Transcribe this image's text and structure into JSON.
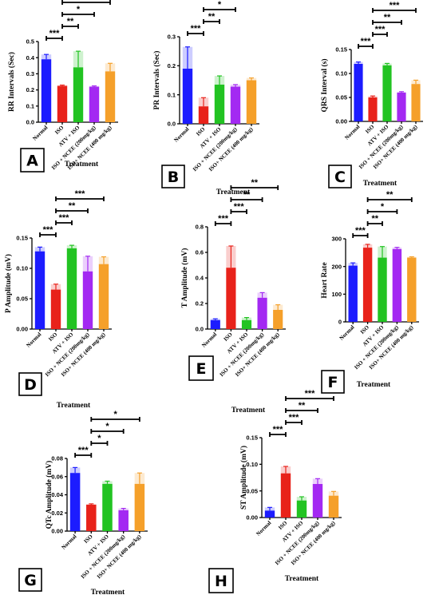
{
  "chart_data": [
    {
      "panel": "A",
      "type": "bar",
      "ylabel": "RR Intervals (Sec)",
      "xlabel": "Treatment",
      "ylim": [
        0,
        0.5
      ],
      "yticks": [
        "0.0",
        "0.1",
        "0.2",
        "0.3",
        "0.4",
        "0.5"
      ],
      "categories": [
        "Normal",
        "ISO",
        "ATV + ISO",
        "ISO + NCEE (200mg/kg)",
        "ISO+ NCEE (400 mg/kg)"
      ],
      "values": [
        0.39,
        0.225,
        0.34,
        0.22,
        0.315
      ],
      "errors": [
        0.03,
        0.005,
        0.1,
        0.005,
        0.05
      ],
      "colors": [
        "#1c1cff",
        "#e8221a",
        "#22c322",
        "#a329f2",
        "#f5a02a"
      ],
      "significance": [
        {
          "from": 0,
          "to": 1,
          "label": "***"
        },
        {
          "from": 1,
          "to": 2,
          "label": "**"
        },
        {
          "from": 1,
          "to": 3,
          "label": "*"
        },
        {
          "from": 1,
          "to": 4,
          "label": "**"
        }
      ]
    },
    {
      "panel": "B",
      "type": "bar",
      "ylabel": "PR Intervals (Sec)",
      "xlabel": "Treatment",
      "ylim": [
        0,
        0.3
      ],
      "yticks": [
        "0.0",
        "0.1",
        "0.2",
        "0.3"
      ],
      "categories": [
        "Normal",
        "ISO",
        "ATV + ISO",
        "ISO + NCEE (200mg/kg)",
        "ISO+ NCEE (400 mg/kg)"
      ],
      "values": [
        0.19,
        0.06,
        0.135,
        0.128,
        0.15
      ],
      "errors": [
        0.075,
        0.03,
        0.03,
        0.007,
        0.008
      ],
      "colors": [
        "#1c1cff",
        "#e8221a",
        "#22c322",
        "#a329f2",
        "#f5a02a"
      ],
      "significance": [
        {
          "from": 0,
          "to": 1,
          "label": "***"
        },
        {
          "from": 1,
          "to": 2,
          "label": "**"
        },
        {
          "from": 1,
          "to": 3,
          "label": "*"
        },
        {
          "from": 1,
          "to": 4,
          "label": "**"
        }
      ]
    },
    {
      "panel": "C",
      "type": "bar",
      "ylabel": "QRS Interval (s)",
      "xlabel": "Treatment",
      "ylim": [
        0,
        0.15
      ],
      "yticks": [
        "0.00",
        "0.05",
        "0.10",
        "0.15"
      ],
      "categories": [
        "Normal",
        "ISO",
        "ATV + ISO",
        "ISO + NCEE (200mg/kg)",
        "ISO+ NCEE (400 mg/kg)"
      ],
      "values": [
        0.12,
        0.05,
        0.117,
        0.06,
        0.078
      ],
      "errors": [
        0.004,
        0.003,
        0.004,
        0.002,
        0.008
      ],
      "colors": [
        "#1c1cff",
        "#e8221a",
        "#22c322",
        "#a329f2",
        "#f5a02a"
      ],
      "significance": [
        {
          "from": 0,
          "to": 1,
          "label": "***"
        },
        {
          "from": 1,
          "to": 2,
          "label": "***"
        },
        {
          "from": 1,
          "to": 3,
          "label": "**"
        },
        {
          "from": 1,
          "to": 4,
          "label": "***"
        }
      ]
    },
    {
      "panel": "D",
      "type": "bar",
      "ylabel": "P Amplitude (mV)",
      "xlabel": "Treatment",
      "ylim": [
        0,
        0.15
      ],
      "yticks": [
        "0.00",
        "0.05",
        "0.10",
        "0.15"
      ],
      "categories": [
        "Normal",
        "ISO",
        "ATV + ISO",
        "ISO + NCEE (200mg/kg)",
        "ISO+ NCEE (400 mg/kg)"
      ],
      "values": [
        0.128,
        0.065,
        0.133,
        0.095,
        0.107
      ],
      "errors": [
        0.007,
        0.009,
        0.005,
        0.025,
        0.012
      ],
      "colors": [
        "#1c1cff",
        "#e8221a",
        "#22c322",
        "#a329f2",
        "#f5a02a"
      ],
      "significance": [
        {
          "from": 0,
          "to": 1,
          "label": "***"
        },
        {
          "from": 1,
          "to": 2,
          "label": "***"
        },
        {
          "from": 1,
          "to": 3,
          "label": "**"
        },
        {
          "from": 1,
          "to": 4,
          "label": "***"
        }
      ]
    },
    {
      "panel": "E",
      "type": "bar",
      "ylabel": "T Amplitude (mV)",
      "xlabel": "Treatment",
      "ylim": [
        0,
        0.8
      ],
      "yticks": [
        "0.0",
        "0.2",
        "0.4",
        "0.6",
        "0.8"
      ],
      "categories": [
        "Normal",
        "ISO",
        "ATV + ISO",
        "ISO + NCEE (200mg/kg)",
        "ISO+ NCEE (400 mg/kg)"
      ],
      "values": [
        0.07,
        0.48,
        0.07,
        0.245,
        0.15
      ],
      "errors": [
        0.01,
        0.17,
        0.02,
        0.04,
        0.04
      ],
      "colors": [
        "#1c1cff",
        "#e8221a",
        "#22c322",
        "#a329f2",
        "#f5a02a"
      ],
      "significance": [
        {
          "from": 0,
          "to": 1,
          "label": "***"
        },
        {
          "from": 1,
          "to": 2,
          "label": "***"
        },
        {
          "from": 1,
          "to": 3,
          "label": "**"
        },
        {
          "from": 1,
          "to": 4,
          "label": "**"
        }
      ]
    },
    {
      "panel": "F",
      "type": "bar",
      "ylabel": "Heart Rate",
      "xlabel": "Treatment",
      "ylim": [
        0,
        300
      ],
      "yticks": [
        "0",
        "100",
        "200",
        "300"
      ],
      "categories": [
        "Normal",
        "ISO",
        "ATV + ISO",
        "ISO + NCEE (200mg/kg)",
        "ISO+ NCEE (400 mg/kg)"
      ],
      "values": [
        203,
        268,
        232,
        263,
        232
      ],
      "errors": [
        10,
        12,
        40,
        6,
        3
      ],
      "colors": [
        "#1c1cff",
        "#e8221a",
        "#22c322",
        "#a329f2",
        "#f5a02a"
      ],
      "significance": [
        {
          "from": 0,
          "to": 1,
          "label": "***"
        },
        {
          "from": 1,
          "to": 2,
          "label": "**"
        },
        {
          "from": 1,
          "to": 3,
          "label": "*"
        },
        {
          "from": 1,
          "to": 4,
          "label": "**"
        }
      ]
    },
    {
      "panel": "G",
      "type": "bar",
      "ylabel": "QTc Amplitude (mV)",
      "xlabel": "Treatment",
      "ylim": [
        0,
        0.08
      ],
      "yticks": [
        "0.00",
        "0.02",
        "0.04",
        "0.06",
        "0.08"
      ],
      "categories": [
        "Normal",
        "ISO",
        "ATV + ISO",
        "ISO + NCEE (200mg/kg)",
        "ISO+ NCEE (400 mg/kg)"
      ],
      "values": [
        0.064,
        0.029,
        0.052,
        0.023,
        0.052
      ],
      "errors": [
        0.006,
        0.001,
        0.003,
        0.002,
        0.012
      ],
      "colors": [
        "#1c1cff",
        "#e8221a",
        "#22c322",
        "#a329f2",
        "#f5a02a"
      ],
      "significance": [
        {
          "from": 0,
          "to": 1,
          "label": "***"
        },
        {
          "from": 1,
          "to": 2,
          "label": "*"
        },
        {
          "from": 1,
          "to": 3,
          "label": "*"
        },
        {
          "from": 1,
          "to": 4,
          "label": "*"
        }
      ]
    },
    {
      "panel": "H",
      "type": "bar",
      "ylabel": "ST Amplitude (mV)",
      "xlabel": "Treatment",
      "ylim": [
        0,
        0.15
      ],
      "yticks": [
        "0.00",
        "0.05",
        "0.10",
        "0.15"
      ],
      "categories": [
        "Normal",
        "ISO",
        "ATV + ISO",
        "ISO + NCEE (200mg/kg)",
        "ISO+ NCEE (400 mg/kg)"
      ],
      "values": [
        0.013,
        0.083,
        0.032,
        0.063,
        0.041
      ],
      "errors": [
        0.006,
        0.013,
        0.007,
        0.01,
        0.008
      ],
      "colors": [
        "#1c1cff",
        "#e8221a",
        "#22c322",
        "#a329f2",
        "#f5a02a"
      ],
      "significance": [
        {
          "from": 0,
          "to": 1,
          "label": "***"
        },
        {
          "from": 1,
          "to": 2,
          "label": "***"
        },
        {
          "from": 1,
          "to": 3,
          "label": "**"
        },
        {
          "from": 1,
          "to": 4,
          "label": "***"
        }
      ]
    }
  ]
}
